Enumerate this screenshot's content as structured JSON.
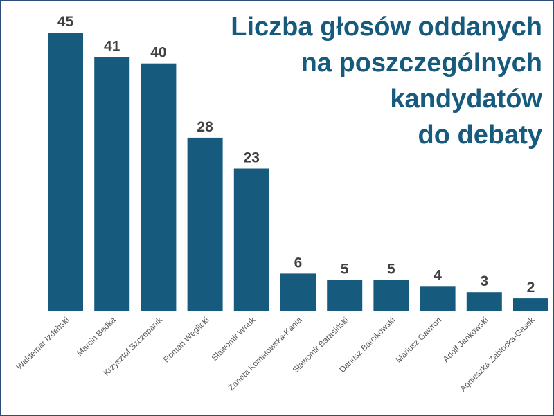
{
  "chart_data": {
    "type": "bar",
    "title_lines": [
      "Liczba głosów oddanych",
      "na poszczególnych",
      "kandydatów",
      "do debaty"
    ],
    "categories": [
      "Waldemar Izdebski",
      "Marcin Bedka",
      "Krzysztof Szczepanik",
      "Roman Węglicki",
      "Sławomir Wnuk",
      "Żaneta Komatowska-Kania",
      "Sławomir Barasiński",
      "Dariusz Barcikowski",
      "Mariusz Gawron",
      "Adolf Jankowski",
      "Agnieszka Zabłocka-Gasek"
    ],
    "values": [
      45,
      41,
      40,
      28,
      23,
      6,
      5,
      5,
      4,
      3,
      2
    ],
    "data_labels": [
      "45",
      "41",
      "40",
      "28",
      "23",
      "6",
      "5",
      "5",
      "4",
      "3",
      "2"
    ],
    "ylim": [
      0,
      45
    ],
    "grid": false,
    "legend": "none",
    "colors": {
      "bar": "#165a7e",
      "title": "#165a7e",
      "value_label": "#404040",
      "category_label": "#595959",
      "border": "#2e4d7a"
    }
  }
}
